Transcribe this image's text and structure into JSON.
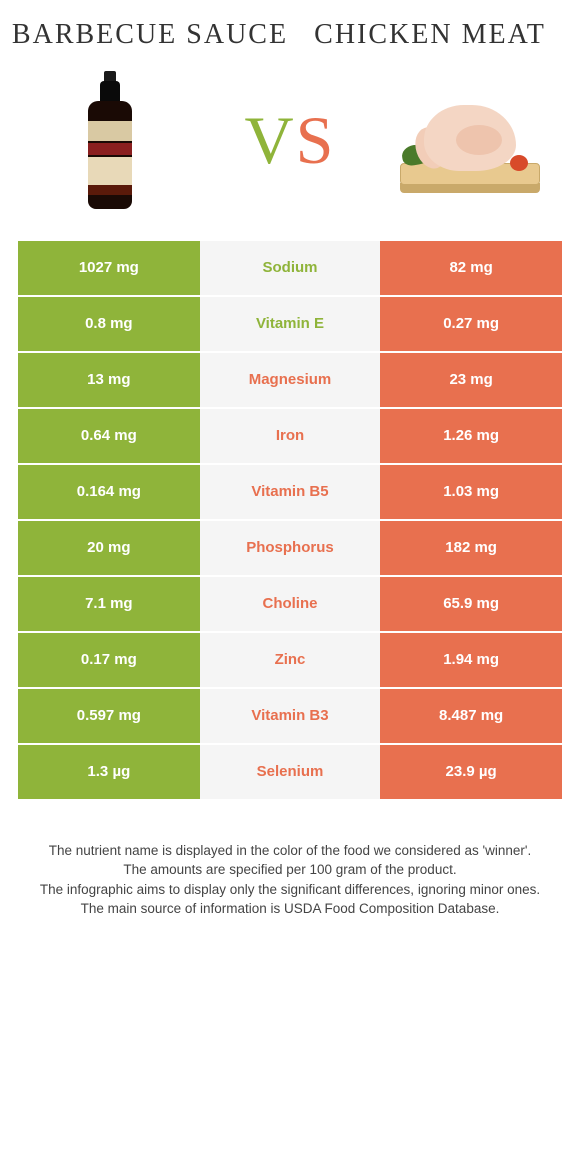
{
  "header": {
    "left_title": "BARBECUE SAUCE",
    "right_title": "CHICKEN MEAT",
    "vs_v": "V",
    "vs_s": "S"
  },
  "colors": {
    "left": "#8fb43a",
    "right": "#e8704f",
    "mid_bg": "#f5f5f5",
    "background": "#ffffff"
  },
  "table": {
    "type": "comparison-table",
    "rows": [
      {
        "nutrient": "Sodium",
        "left": "1027 mg",
        "right": "82 mg",
        "winner": "left"
      },
      {
        "nutrient": "Vitamin E",
        "left": "0.8 mg",
        "right": "0.27 mg",
        "winner": "left"
      },
      {
        "nutrient": "Magnesium",
        "left": "13 mg",
        "right": "23 mg",
        "winner": "right"
      },
      {
        "nutrient": "Iron",
        "left": "0.64 mg",
        "right": "1.26 mg",
        "winner": "right"
      },
      {
        "nutrient": "Vitamin B5",
        "left": "0.164 mg",
        "right": "1.03 mg",
        "winner": "right"
      },
      {
        "nutrient": "Phosphorus",
        "left": "20 mg",
        "right": "182 mg",
        "winner": "right"
      },
      {
        "nutrient": "Choline",
        "left": "7.1 mg",
        "right": "65.9 mg",
        "winner": "right"
      },
      {
        "nutrient": "Zinc",
        "left": "0.17 mg",
        "right": "1.94 mg",
        "winner": "right"
      },
      {
        "nutrient": "Vitamin B3",
        "left": "0.597 mg",
        "right": "8.487 mg",
        "winner": "right"
      },
      {
        "nutrient": "Selenium",
        "left": "1.3 µg",
        "right": "23.9 µg",
        "winner": "right"
      }
    ]
  },
  "footer": {
    "line1": "The nutrient name is displayed in the color of the food we considered as 'winner'.",
    "line2": "The amounts are specified per 100 gram of the product.",
    "line3": "The infographic aims to display only the significant differences, ignoring minor ones.",
    "line4": "The main source of information is USDA Food Composition Database."
  }
}
